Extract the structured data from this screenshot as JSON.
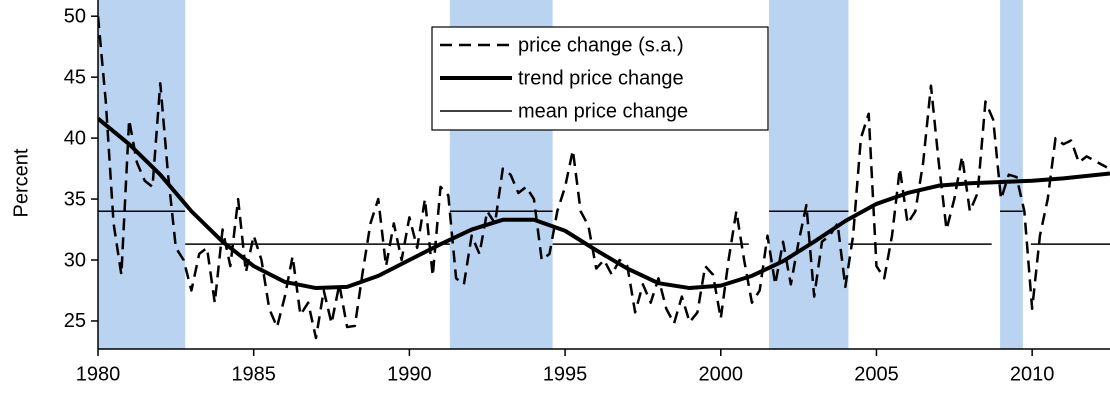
{
  "chart_data": {
    "type": "line",
    "ylabel": "Percent",
    "xlim": [
      1980,
      2012.5
    ],
    "ylim": [
      22.7,
      50
    ],
    "xticks": [
      1980,
      1985,
      1990,
      1995,
      2000,
      2005,
      2010
    ],
    "yticks": [
      25,
      30,
      35,
      40,
      45,
      50
    ],
    "shaded_color": "#b9d3f0",
    "shaded_periods": [
      [
        1980,
        1982.8
      ],
      [
        1991.3,
        1994.6
      ],
      [
        2001.55,
        2004.1
      ],
      [
        2008.97,
        2009.7
      ]
    ],
    "legend": "upper center",
    "series": [
      {
        "name": "price change (s.a.)",
        "color": "#000000",
        "dash": true,
        "width": 2.5,
        "x": [
          1980,
          1980.25,
          1980.5,
          1980.75,
          1981,
          1981.25,
          1981.5,
          1981.75,
          1982,
          1982.25,
          1982.5,
          1982.75,
          1983,
          1983.25,
          1983.5,
          1983.75,
          1984,
          1984.25,
          1984.5,
          1984.75,
          1985,
          1985.25,
          1985.5,
          1985.75,
          1986,
          1986.25,
          1986.5,
          1986.75,
          1987,
          1987.25,
          1987.5,
          1987.75,
          1988,
          1988.25,
          1988.5,
          1988.75,
          1989,
          1989.25,
          1989.5,
          1989.75,
          1990,
          1990.25,
          1990.5,
          1990.75,
          1991,
          1991.25,
          1991.5,
          1991.75,
          1992,
          1992.25,
          1992.5,
          1992.75,
          1993,
          1993.25,
          1993.5,
          1993.75,
          1994,
          1994.25,
          1994.5,
          1994.75,
          1995,
          1995.25,
          1995.5,
          1995.75,
          1996,
          1996.25,
          1996.5,
          1996.75,
          1997,
          1997.25,
          1997.5,
          1997.75,
          1998,
          1998.25,
          1998.5,
          1998.75,
          1999,
          1999.25,
          1999.5,
          1999.75,
          2000,
          2000.25,
          2000.5,
          2000.75,
          2001,
          2001.25,
          2001.5,
          2001.75,
          2002,
          2002.25,
          2002.5,
          2002.75,
          2003,
          2003.25,
          2003.5,
          2003.75,
          2004,
          2004.25,
          2004.5,
          2004.75,
          2005,
          2005.25,
          2005.5,
          2005.75,
          2006,
          2006.25,
          2006.5,
          2006.75,
          2007,
          2007.25,
          2007.5,
          2007.75,
          2008,
          2008.25,
          2008.5,
          2008.75,
          2009,
          2009.25,
          2009.5,
          2009.75,
          2010,
          2010.25,
          2010.5,
          2010.75,
          2011,
          2011.25,
          2011.5,
          2011.75,
          2012.4
        ],
        "values": [
          50,
          43,
          33,
          28.8,
          41.5,
          38,
          36.5,
          36,
          44.5,
          37,
          31,
          30,
          27.5,
          30.5,
          31,
          26.5,
          32.5,
          29.5,
          35,
          29,
          32,
          30,
          26,
          24.5,
          27,
          30.3,
          25.5,
          26.5,
          23.6,
          27.5,
          24.8,
          28,
          24.5,
          24.6,
          29,
          33,
          35,
          29.5,
          33,
          30,
          33.5,
          31,
          35,
          28.7,
          36,
          35.3,
          28.5,
          28,
          32,
          30.5,
          34,
          33,
          37.5,
          37,
          35.5,
          36,
          35,
          30,
          30.5,
          34,
          36,
          39,
          34,
          32.8,
          29.3,
          30,
          28.8,
          30,
          29.5,
          25.7,
          28,
          26.5,
          28.5,
          26,
          24.8,
          27,
          24.9,
          25.7,
          29.5,
          28.8,
          25.2,
          30,
          34,
          30,
          26.5,
          27.5,
          32,
          28,
          31.5,
          28,
          31.5,
          34.5,
          27,
          31.5,
          32,
          33,
          27.8,
          32,
          40,
          42,
          29.5,
          28.5,
          32,
          37.5,
          33,
          34,
          38,
          44.3,
          38,
          32.5,
          35,
          38.5,
          34,
          35.5,
          43,
          41.5,
          35,
          37,
          36.8,
          34,
          26,
          32,
          35,
          40,
          39.5,
          39.8,
          38,
          38.5,
          37.6
        ]
      },
      {
        "name": "trend price change",
        "color": "#000000",
        "dash": false,
        "width": 4,
        "x": [
          1980,
          1981,
          1982,
          1983,
          1984,
          1985,
          1986,
          1987,
          1988,
          1989,
          1990,
          1991,
          1992,
          1993,
          1994,
          1995,
          1996,
          1997,
          1998,
          1999,
          2000,
          2001,
          2002,
          2003,
          2004,
          2005,
          2006,
          2007,
          2008,
          2009,
          2010,
          2011,
          2012.5
        ],
        "values": [
          41.6,
          39.5,
          37,
          34,
          31.5,
          29.5,
          28.2,
          27.7,
          27.8,
          28.7,
          30,
          31.3,
          32.5,
          33.3,
          33.3,
          32.4,
          30.8,
          29.3,
          28.1,
          27.7,
          27.9,
          28.7,
          29.9,
          31.5,
          33.2,
          34.6,
          35.5,
          36.1,
          36.3,
          36.4,
          36.5,
          36.7,
          37.1
        ]
      },
      {
        "name": "mean price change",
        "color": "#000000",
        "dash": false,
        "width": 1.5,
        "segments": [
          [
            1980,
            1982.8,
            34
          ],
          [
            1982.8,
            1991.3,
            31.3
          ],
          [
            1991.3,
            1994.6,
            34
          ],
          [
            1994.6,
            2000.9,
            31.3
          ],
          [
            2001.55,
            2004.1,
            34
          ],
          [
            2004.1,
            2008.7,
            31.3
          ],
          [
            2008.97,
            2009.7,
            34
          ],
          [
            2009.96,
            2012.5,
            31.3
          ]
        ]
      }
    ]
  }
}
